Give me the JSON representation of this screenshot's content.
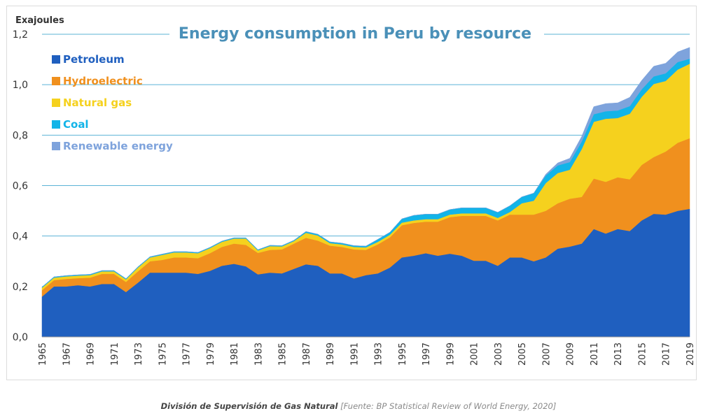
{
  "footer": {
    "org": "División de Supervisión de Gas Natural",
    "source": "[Fuente: BP Statistical Review of World Energy, 2020]"
  },
  "chart_data": {
    "type": "area",
    "stacked": true,
    "title": "Energy consumption in Peru by resource",
    "ylabel": "Exajoules",
    "ylim": [
      0,
      1.2
    ],
    "yticks": [
      0,
      0.2,
      0.4,
      0.6,
      0.8,
      1.0,
      1.2
    ],
    "ytick_labels": [
      "0,0",
      "0,2",
      "0,4",
      "0,6",
      "0,8",
      "1,0",
      "1,2"
    ],
    "xlim": [
      1965,
      2019
    ],
    "xticks": [
      1965,
      1967,
      1969,
      1971,
      1973,
      1975,
      1977,
      1979,
      1981,
      1983,
      1985,
      1987,
      1989,
      1991,
      1993,
      1995,
      1997,
      1999,
      2001,
      2003,
      2005,
      2007,
      2009,
      2011,
      2013,
      2015,
      2017,
      2019
    ],
    "xtick_labels": [
      "1965",
      "1967",
      "1969",
      "1971",
      "1973",
      "1975",
      "1977",
      "1979",
      "1981",
      "1983",
      "1985",
      "1987",
      "1989",
      "1991",
      "1993",
      "1995",
      "1997",
      "1999",
      "2001",
      "2003",
      "2005",
      "2007",
      "2009",
      "2011",
      "2013",
      "2015",
      "2017",
      "2019"
    ],
    "grid": "horizontal",
    "legend_position": "top-left",
    "x": [
      1965,
      1966,
      1967,
      1968,
      1969,
      1970,
      1971,
      1972,
      1973,
      1974,
      1975,
      1976,
      1977,
      1978,
      1979,
      1980,
      1981,
      1982,
      1983,
      1984,
      1985,
      1986,
      1987,
      1988,
      1989,
      1990,
      1991,
      1992,
      1993,
      1994,
      1995,
      1996,
      1997,
      1998,
      1999,
      2000,
      2001,
      2002,
      2003,
      2004,
      2005,
      2006,
      2007,
      2008,
      2009,
      2010,
      2011,
      2012,
      2013,
      2014,
      2015,
      2016,
      2017,
      2018,
      2019
    ],
    "series": [
      {
        "name": "Petroleum",
        "color": "#1f5fbf",
        "values": [
          0.16,
          0.2,
          0.2,
          0.205,
          0.2,
          0.21,
          0.21,
          0.178,
          0.215,
          0.255,
          0.255,
          0.255,
          0.255,
          0.25,
          0.262,
          0.282,
          0.29,
          0.28,
          0.248,
          0.255,
          0.252,
          0.27,
          0.288,
          0.282,
          0.252,
          0.252,
          0.232,
          0.245,
          0.252,
          0.275,
          0.315,
          0.322,
          0.332,
          0.322,
          0.33,
          0.322,
          0.302,
          0.302,
          0.282,
          0.315,
          0.315,
          0.3,
          0.315,
          0.35,
          0.358,
          0.37,
          0.428,
          0.41,
          0.428,
          0.42,
          0.462,
          0.488,
          0.485,
          0.5,
          0.508
        ]
      },
      {
        "name": "Hydroelectric",
        "color": "#f0901e",
        "values": [
          0.025,
          0.025,
          0.03,
          0.028,
          0.035,
          0.04,
          0.04,
          0.04,
          0.045,
          0.045,
          0.05,
          0.06,
          0.06,
          0.062,
          0.07,
          0.075,
          0.08,
          0.085,
          0.085,
          0.09,
          0.095,
          0.1,
          0.105,
          0.1,
          0.11,
          0.105,
          0.115,
          0.1,
          0.115,
          0.12,
          0.128,
          0.13,
          0.125,
          0.135,
          0.145,
          0.158,
          0.178,
          0.178,
          0.18,
          0.17,
          0.17,
          0.185,
          0.185,
          0.18,
          0.19,
          0.185,
          0.2,
          0.205,
          0.205,
          0.205,
          0.22,
          0.225,
          0.25,
          0.27,
          0.28
        ]
      },
      {
        "name": "Natural gas",
        "color": "#f5d11e",
        "values": [
          0.01,
          0.01,
          0.01,
          0.01,
          0.01,
          0.01,
          0.01,
          0.01,
          0.015,
          0.015,
          0.02,
          0.02,
          0.02,
          0.02,
          0.02,
          0.02,
          0.02,
          0.025,
          0.01,
          0.015,
          0.012,
          0.01,
          0.02,
          0.02,
          0.01,
          0.01,
          0.01,
          0.01,
          0.01,
          0.01,
          0.01,
          0.01,
          0.01,
          0.01,
          0.01,
          0.01,
          0.01,
          0.01,
          0.01,
          0.01,
          0.045,
          0.055,
          0.11,
          0.12,
          0.115,
          0.19,
          0.225,
          0.25,
          0.235,
          0.26,
          0.27,
          0.29,
          0.28,
          0.29,
          0.295
        ]
      },
      {
        "name": "Coal",
        "color": "#12b4e8",
        "values": [
          0.003,
          0.003,
          0.003,
          0.003,
          0.003,
          0.003,
          0.003,
          0.003,
          0.003,
          0.003,
          0.003,
          0.003,
          0.003,
          0.003,
          0.003,
          0.003,
          0.003,
          0.003,
          0.003,
          0.003,
          0.003,
          0.003,
          0.005,
          0.005,
          0.005,
          0.005,
          0.005,
          0.005,
          0.01,
          0.01,
          0.015,
          0.02,
          0.02,
          0.02,
          0.02,
          0.022,
          0.022,
          0.022,
          0.022,
          0.025,
          0.025,
          0.03,
          0.03,
          0.03,
          0.03,
          0.03,
          0.03,
          0.03,
          0.03,
          0.03,
          0.03,
          0.03,
          0.03,
          0.03,
          0.02
        ]
      },
      {
        "name": "Renewable energy",
        "color": "#7ea3dc",
        "values": [
          0,
          0,
          0,
          0,
          0,
          0,
          0,
          0,
          0,
          0,
          0,
          0,
          0,
          0,
          0,
          0,
          0,
          0,
          0,
          0,
          0,
          0,
          0,
          0,
          0,
          0,
          0,
          0,
          0,
          0,
          0,
          0,
          0,
          0,
          0,
          0,
          0,
          0,
          0,
          0,
          0,
          0,
          0.005,
          0.01,
          0.015,
          0.02,
          0.03,
          0.03,
          0.03,
          0.035,
          0.035,
          0.04,
          0.04,
          0.04,
          0.045
        ]
      }
    ]
  }
}
